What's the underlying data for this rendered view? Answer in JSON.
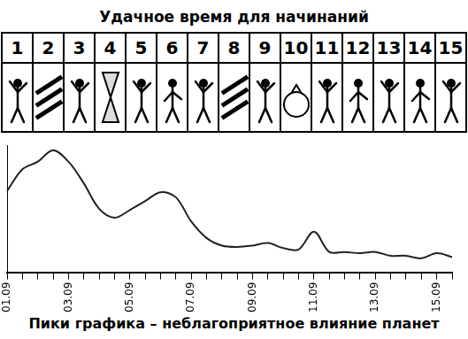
{
  "header": {
    "title": "Удачное время для начинаний",
    "days": [
      1,
      2,
      3,
      4,
      5,
      6,
      7,
      8,
      9,
      10,
      11,
      12,
      13,
      14,
      15
    ]
  },
  "footer": {
    "text": "Пики графика – неблагоприятное влияние планет"
  },
  "chart_data": {
    "type": "line",
    "categories": [
      "01.09",
      null,
      null,
      null,
      "03.09",
      null,
      null,
      null,
      "05.09",
      null,
      null,
      null,
      "07.09",
      null,
      null,
      null,
      "09.09",
      null,
      null,
      null,
      "11.09",
      null,
      null,
      null,
      "13.09",
      null,
      null,
      null,
      "15.09",
      null
    ],
    "values": [
      64,
      81,
      87,
      96,
      87,
      70,
      50,
      43,
      49,
      56,
      63,
      59,
      40,
      27,
      21,
      20,
      21,
      23,
      19,
      18,
      32,
      16,
      16,
      15,
      16,
      13,
      13,
      11,
      15,
      12
    ],
    "color": "#222222",
    "ylim": [
      0,
      100
    ],
    "grid": false,
    "tick_labels": "x"
  }
}
